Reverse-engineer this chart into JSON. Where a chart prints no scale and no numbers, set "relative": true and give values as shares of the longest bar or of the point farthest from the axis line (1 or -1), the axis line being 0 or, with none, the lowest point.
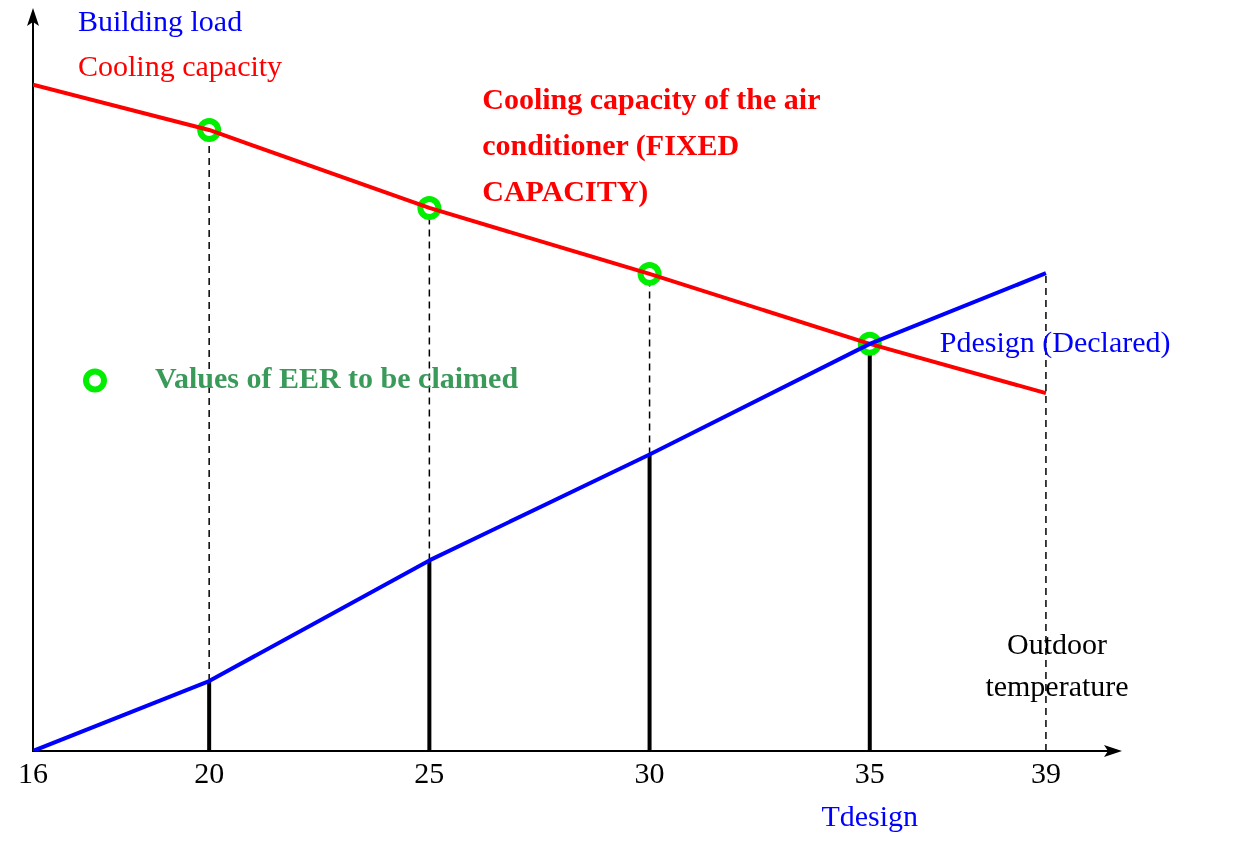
{
  "chart_data": {
    "type": "line",
    "relative": true,
    "xlabel": "Outdoor temperature",
    "xlim": [
      16,
      40.5
    ],
    "xticks": [
      16,
      20,
      25,
      30,
      35,
      39
    ],
    "grid": false,
    "legend": "top left",
    "series": [
      {
        "name": "Building load",
        "color": "#0000ff",
        "x": [
          16,
          20,
          25,
          30,
          35,
          39
        ],
        "values": [
          0,
          0.105,
          0.286,
          0.445,
          0.611,
          0.717
        ],
        "marker": "none"
      },
      {
        "name": "Cooling capacity",
        "color": "#ff0000",
        "x": [
          16,
          20,
          25,
          30,
          35,
          39
        ],
        "values": [
          1,
          0.932,
          0.815,
          0.716,
          0.611,
          0.537
        ],
        "marker": "none"
      },
      {
        "name": "Values of EER to be claimed",
        "type": "scatter",
        "color": "#00ee00",
        "x": [
          20,
          25,
          30,
          35
        ],
        "values": [
          0.932,
          0.815,
          0.716,
          0.611
        ],
        "marker": "circle"
      }
    ],
    "ref_lines": [
      {
        "axis": "x",
        "value": 20,
        "line_style": "solid",
        "color": "#000000"
      },
      {
        "axis": "x",
        "value": 25,
        "line_style": "solid",
        "color": "#000000"
      },
      {
        "axis": "x",
        "value": 30,
        "line_style": "solid",
        "color": "#000000"
      },
      {
        "axis": "x",
        "value": 35,
        "line_style": "solid",
        "color": "#000000"
      },
      {
        "axis": "x",
        "value": 20,
        "line_style": "dashed",
        "color": "#000000"
      },
      {
        "axis": "x",
        "value": 25,
        "line_style": "dashed",
        "color": "#000000"
      },
      {
        "axis": "x",
        "value": 30,
        "line_style": "dashed",
        "color": "#000000"
      },
      {
        "axis": "x",
        "value": 39,
        "line_style": "dashed",
        "color": "#000000"
      }
    ],
    "annotations": [
      "Cooling capacity of the air conditioner (FIXED CAPACITY)",
      {
        "text": "Pdesign (Declared)",
        "x": 35,
        "y": 0.611
      },
      {
        "text": "Tdesign",
        "x": 35,
        "y": 0
      }
    ]
  }
}
